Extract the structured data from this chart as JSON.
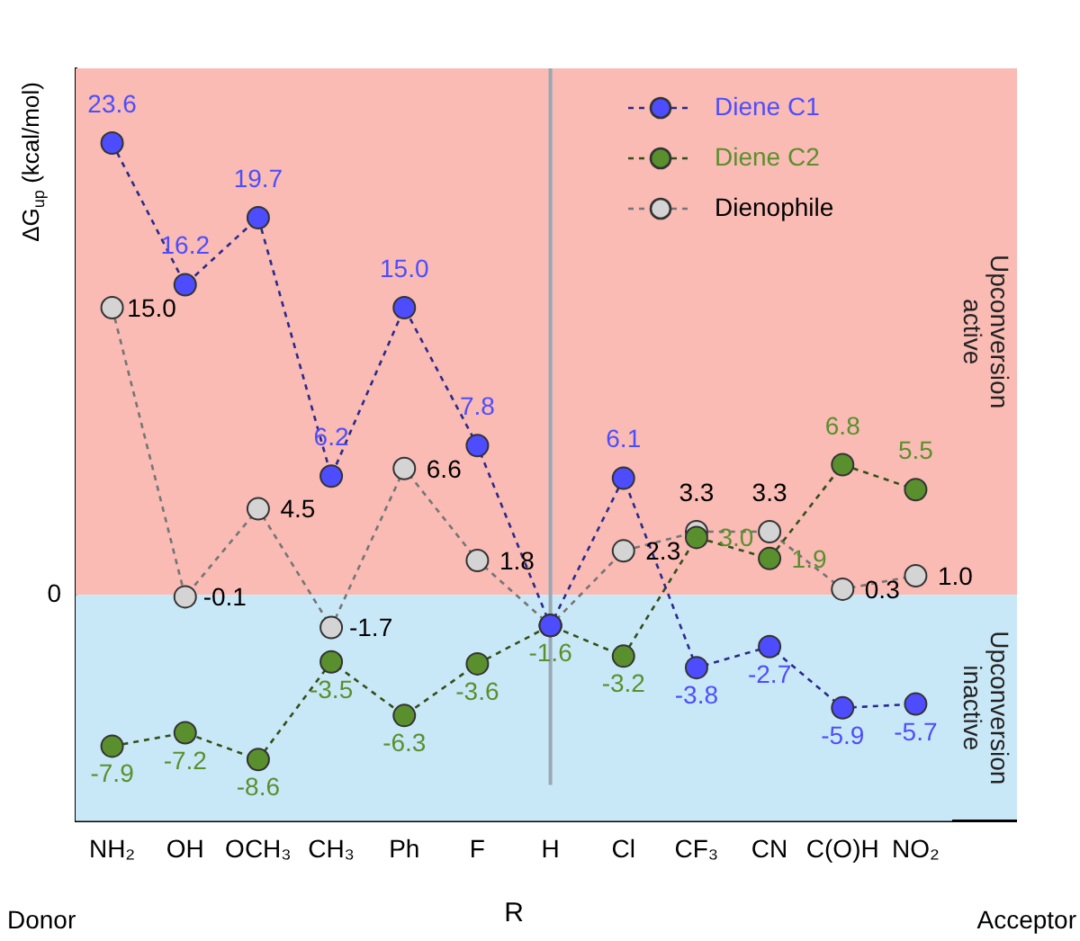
{
  "chart_data": {
    "type": "line",
    "ylabel": "ΔG$_{up}$ (kcal/mol)",
    "xlabel": "R",
    "categories": [
      "NH₂",
      "OH",
      "OCH₃",
      "CH₃",
      "Ph",
      "F",
      "H",
      "Cl",
      "CF₃",
      "CN",
      "C(O)H",
      "NO₂"
    ],
    "series": [
      {
        "name": "Diene C1",
        "color": "#4d4dff",
        "values": [
          23.6,
          16.2,
          19.7,
          6.2,
          15.0,
          7.8,
          -1.6,
          6.1,
          -3.8,
          -2.7,
          -5.9,
          -5.7
        ],
        "value_labels": [
          "23.6",
          "16.2",
          "19.7",
          "6.2",
          "15.0",
          "7.8",
          null,
          "6.1",
          "-3.8",
          "-2.7",
          "-5.9",
          "-5.7"
        ]
      },
      {
        "name": "Diene C2",
        "color": "#5a8f2e",
        "values": [
          -7.9,
          -7.2,
          -8.6,
          -3.5,
          -6.3,
          -3.6,
          -1.6,
          -3.2,
          3.0,
          1.9,
          6.8,
          5.5
        ],
        "value_labels": [
          "-7.9",
          "-7.2",
          "-8.6",
          "-3.5",
          "-6.3",
          "-3.6",
          "-1.6",
          "-3.2",
          "3.0",
          "1.9",
          "6.8",
          "5.5"
        ]
      },
      {
        "name": "Dienophile",
        "color": "#d4d4d4",
        "values": [
          15.0,
          -0.1,
          4.5,
          -1.7,
          6.6,
          1.8,
          -1.6,
          2.3,
          3.3,
          3.3,
          0.3,
          1.0
        ],
        "value_labels": [
          "15.0",
          "-0.1",
          "4.5",
          "-1.7",
          "6.6",
          "1.8",
          null,
          "2.3",
          "3.3",
          "3.3",
          "0.3",
          "1.0"
        ]
      }
    ],
    "ylim": [
      -11.8,
      27.5
    ],
    "bands": [
      {
        "axis": "y",
        "from": 0,
        "to": 27.5,
        "label": "Upconversion active",
        "color": "#f9bbb4"
      },
      {
        "axis": "y",
        "from": -11.8,
        "to": 0,
        "label": "Upconversion inactive",
        "color": "#c9e8f7"
      }
    ],
    "ref_lines": [
      {
        "axis": "x",
        "value": "H",
        "color": "#9aa7b5"
      }
    ],
    "annotations": [
      "Donor",
      "Acceptor",
      "0"
    ],
    "legend": "top right",
    "marker": "circle",
    "line_style": "dashed"
  }
}
